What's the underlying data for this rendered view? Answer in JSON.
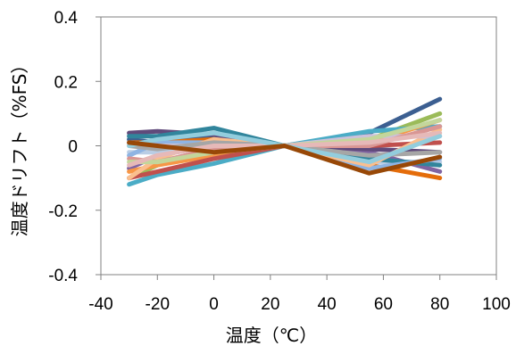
{
  "chart_data": {
    "type": "line",
    "title": "",
    "xlabel": "温度（℃）",
    "ylabel": "温度ドリフト（%FS）",
    "xlim": [
      -40,
      100
    ],
    "ylim": [
      -0.4,
      0.4
    ],
    "x_ticks": [
      -40,
      -20,
      0,
      20,
      40,
      60,
      80,
      100
    ],
    "y_ticks": [
      0.4,
      0.2,
      0,
      -0.2,
      -0.4
    ],
    "x_tick_labels": [
      "-40",
      "-20",
      "0",
      "20",
      "40",
      "60",
      "80",
      "100"
    ],
    "y_tick_labels": [
      "0.4",
      "0.2",
      "0",
      "-0.2",
      "-0.4"
    ],
    "grid": false,
    "legend": "none",
    "x": [
      -30,
      -20,
      0,
      25,
      55,
      80
    ],
    "series": [
      {
        "color": "#3c5f91",
        "values": [
          0.02,
          0.01,
          0.03,
          0,
          0.04,
          0.145
        ]
      },
      {
        "color": "#9bbb59",
        "values": [
          -0.1,
          -0.06,
          -0.02,
          0,
          0.02,
          0.1
        ]
      },
      {
        "color": "#e46c0a",
        "values": [
          0.01,
          0.01,
          0.02,
          0,
          -0.06,
          -0.1
        ]
      },
      {
        "color": "#8064a2",
        "values": [
          -0.07,
          -0.03,
          0,
          0,
          -0.02,
          -0.08
        ]
      },
      {
        "color": "#4bacc6",
        "values": [
          -0.12,
          -0.09,
          -0.055,
          0,
          0.045,
          0.06
        ]
      },
      {
        "color": "#604a7b",
        "values": [
          0.04,
          0.045,
          0.035,
          0,
          -0.01,
          -0.02
        ]
      },
      {
        "color": "#f79646",
        "values": [
          -0.08,
          -0.06,
          -0.03,
          0,
          0.01,
          0.08
        ]
      },
      {
        "color": "#c0504d",
        "values": [
          -0.1,
          -0.08,
          -0.04,
          0,
          0.0,
          0.01
        ]
      },
      {
        "color": "#b9cde5",
        "values": [
          -0.02,
          -0.02,
          0.0,
          0,
          -0.05,
          -0.05
        ]
      },
      {
        "color": "#31859c",
        "values": [
          0.03,
          0.03,
          0.055,
          0,
          -0.04,
          -0.06
        ]
      },
      {
        "color": "#8eb4e3",
        "values": [
          -0.03,
          0.01,
          0.01,
          0,
          -0.07,
          -0.04
        ]
      },
      {
        "color": "#fabf8f",
        "values": [
          -0.1,
          -0.04,
          0.02,
          0,
          -0.06,
          0.05
        ]
      },
      {
        "color": "#ccc1da",
        "values": [
          0.01,
          0.0,
          0.0,
          0,
          0.03,
          0.03
        ]
      },
      {
        "color": "#d99694",
        "values": [
          -0.04,
          -0.05,
          -0.01,
          0,
          0.0,
          0.06
        ]
      },
      {
        "color": "#c3d69b",
        "values": [
          -0.05,
          -0.05,
          -0.02,
          0,
          0.02,
          0.08
        ]
      },
      {
        "color": "#a6a6a6",
        "values": [
          0.0,
          -0.01,
          0.01,
          0,
          -0.03,
          -0.02
        ]
      },
      {
        "color": "#e6b9b8",
        "values": [
          -0.06,
          -0.03,
          0.0,
          0,
          0.01,
          0.04
        ]
      },
      {
        "color": "#93cddd",
        "values": [
          0.0,
          0.02,
          0.04,
          0,
          -0.05,
          0.03
        ]
      },
      {
        "color": "#984807",
        "values": [
          0.01,
          0.0,
          -0.02,
          0,
          -0.085,
          -0.035
        ]
      }
    ]
  }
}
